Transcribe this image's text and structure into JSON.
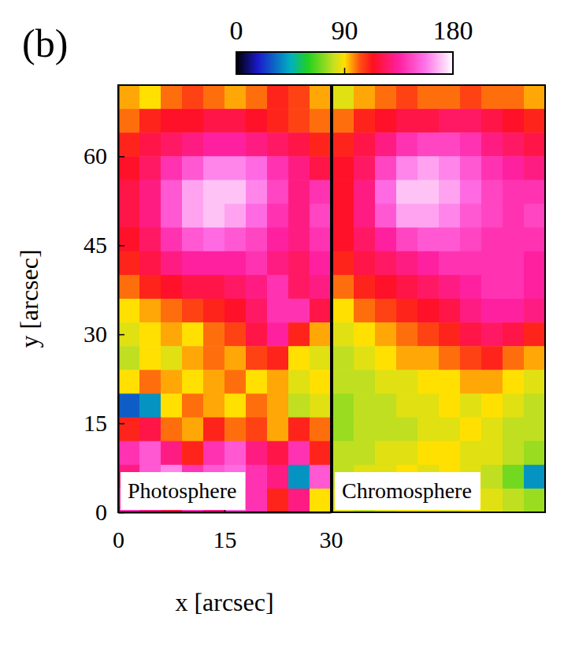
{
  "chart_data": [
    {
      "type": "heatmap",
      "title": "Photosphere",
      "annotation": "(b)",
      "x_label": "x [arcsec]",
      "y_label": "y [arcsec]",
      "xlim": [
        0,
        30
      ],
      "ylim": [
        0,
        72
      ],
      "xticks": [
        0,
        15,
        30
      ],
      "yticks": [
        0,
        15,
        30,
        45,
        60
      ],
      "x": [
        1.5,
        4.5,
        7.5,
        10.5,
        13.5,
        16.5,
        19.5,
        22.5,
        25.5,
        28.5
      ],
      "y": [
        70,
        66,
        62,
        58,
        54,
        50,
        46,
        42,
        38,
        34,
        30,
        26,
        22,
        18,
        14,
        10,
        6,
        2
      ],
      "z": [
        [
          95,
          90,
          100,
          105,
          100,
          95,
          100,
          110,
          105,
          95
        ],
        [
          100,
          110,
          115,
          115,
          120,
          120,
          115,
          110,
          105,
          100
        ],
        [
          110,
          120,
          125,
          130,
          135,
          135,
          130,
          125,
          120,
          110
        ],
        [
          115,
          125,
          140,
          150,
          160,
          160,
          155,
          140,
          130,
          120
        ],
        [
          120,
          130,
          150,
          165,
          170,
          170,
          160,
          145,
          130,
          140
        ],
        [
          120,
          130,
          150,
          165,
          170,
          165,
          155,
          140,
          130,
          145
        ],
        [
          115,
          125,
          140,
          150,
          155,
          150,
          145,
          135,
          130,
          140
        ],
        [
          110,
          120,
          130,
          135,
          135,
          135,
          140,
          130,
          125,
          135
        ],
        [
          100,
          110,
          115,
          120,
          120,
          125,
          130,
          140,
          125,
          130
        ],
        [
          90,
          95,
          100,
          105,
          110,
          115,
          125,
          140,
          140,
          120
        ],
        [
          85,
          90,
          95,
          90,
          100,
          105,
          120,
          135,
          110,
          95
        ],
        [
          80,
          90,
          85,
          95,
          100,
          95,
          105,
          110,
          90,
          85
        ],
        [
          90,
          100,
          95,
          90,
          95,
          100,
          90,
          95,
          85,
          90
        ],
        [
          30,
          40,
          90,
          100,
          95,
          90,
          100,
          95,
          80,
          85
        ],
        [
          110,
          120,
          100,
          95,
          110,
          100,
          105,
          95,
          110,
          100
        ],
        [
          140,
          150,
          130,
          110,
          140,
          150,
          130,
          120,
          140,
          110
        ],
        [
          130,
          150,
          160,
          140,
          150,
          155,
          140,
          130,
          40,
          150
        ],
        [
          140,
          130,
          120,
          140,
          130,
          150,
          140,
          110,
          130,
          90
        ]
      ],
      "colorbar": {
        "range": [
          0,
          180
        ],
        "ticks": [
          0,
          90,
          180
        ]
      }
    },
    {
      "type": "heatmap",
      "title": "Chromosphere",
      "tick_labels": false,
      "xlim": [
        0,
        30
      ],
      "ylim": [
        0,
        72
      ],
      "x": [
        1.5,
        4.5,
        7.5,
        10.5,
        13.5,
        16.5,
        19.5,
        22.5,
        25.5,
        28.5
      ],
      "y": [
        70,
        66,
        62,
        58,
        54,
        50,
        46,
        42,
        38,
        34,
        30,
        26,
        22,
        18,
        14,
        10,
        6,
        2
      ],
      "z": [
        [
          85,
          95,
          100,
          105,
          100,
          100,
          105,
          100,
          100,
          95
        ],
        [
          100,
          110,
          115,
          120,
          120,
          125,
          125,
          120,
          115,
          110
        ],
        [
          110,
          120,
          130,
          140,
          145,
          145,
          140,
          130,
          125,
          120
        ],
        [
          115,
          125,
          145,
          160,
          165,
          160,
          150,
          140,
          135,
          130
        ],
        [
          115,
          130,
          155,
          170,
          170,
          165,
          155,
          145,
          140,
          140
        ],
        [
          115,
          130,
          150,
          165,
          165,
          160,
          150,
          145,
          140,
          145
        ],
        [
          115,
          125,
          135,
          145,
          150,
          150,
          145,
          140,
          140,
          140
        ],
        [
          110,
          120,
          125,
          130,
          135,
          140,
          140,
          140,
          140,
          135
        ],
        [
          100,
          110,
          115,
          120,
          125,
          130,
          135,
          140,
          140,
          135
        ],
        [
          90,
          100,
          105,
          110,
          115,
          120,
          130,
          135,
          135,
          130
        ],
        [
          85,
          90,
          95,
          100,
          105,
          110,
          120,
          125,
          120,
          110
        ],
        [
          80,
          85,
          90,
          95,
          95,
          100,
          105,
          110,
          100,
          95
        ],
        [
          80,
          80,
          85,
          85,
          90,
          90,
          95,
          95,
          90,
          85
        ],
        [
          75,
          80,
          80,
          85,
          85,
          90,
          85,
          90,
          85,
          80
        ],
        [
          75,
          80,
          80,
          80,
          85,
          85,
          90,
          85,
          80,
          80
        ],
        [
          80,
          80,
          85,
          85,
          90,
          90,
          85,
          85,
          80,
          75
        ],
        [
          80,
          85,
          85,
          90,
          85,
          90,
          85,
          80,
          70,
          40
        ],
        [
          85,
          80,
          85,
          90,
          90,
          85,
          90,
          85,
          80,
          75
        ]
      ]
    }
  ]
}
